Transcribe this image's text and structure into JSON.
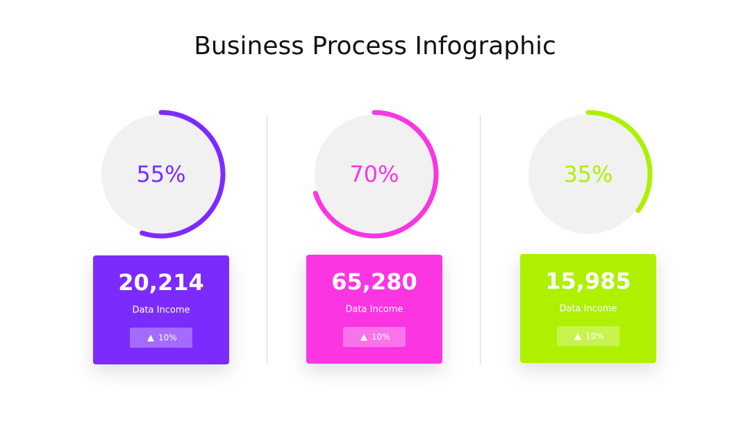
{
  "title": "Business Process Infographic",
  "cards": [
    {
      "progress": {
        "value": 55,
        "label": "55%"
      },
      "amount": "20,214",
      "label": "Data Income",
      "change": "10%",
      "color": "#7c2bff"
    },
    {
      "progress": {
        "value": 70,
        "label": "70%"
      },
      "amount": "65,280",
      "label": "Data Income",
      "change": "10%",
      "color": "#fb35e2"
    },
    {
      "progress": {
        "value": 35,
        "label": "35%"
      },
      "amount": "15,985",
      "label": "Data Income",
      "change": "10%",
      "color": "#aef000"
    }
  ]
}
